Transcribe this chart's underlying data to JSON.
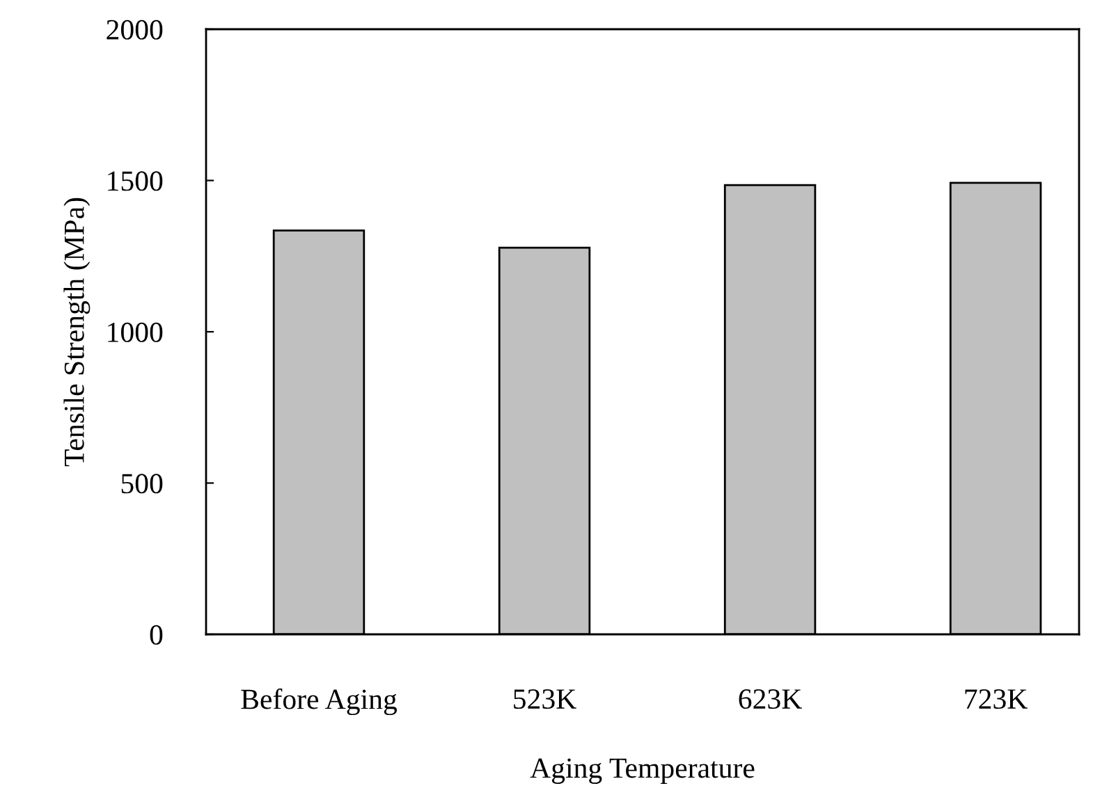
{
  "chart_data": {
    "type": "bar",
    "xlabel": "Aging Temperature",
    "ylabel": "Tensile Strength (MPa)",
    "categories": [
      "Before Aging",
      "523K",
      "623K",
      "723K"
    ],
    "values": [
      1335,
      1278,
      1485,
      1492
    ],
    "color": "#c0c0c0",
    "ylim": [
      0,
      2000
    ],
    "yticks": [
      0,
      500,
      1000,
      1500,
      2000
    ],
    "grid": false,
    "legend": false
  }
}
